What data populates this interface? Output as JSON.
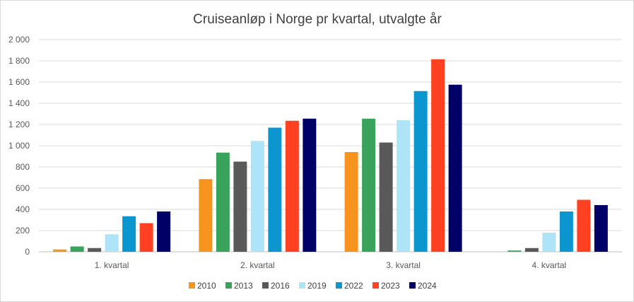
{
  "chart_data": {
    "type": "bar",
    "title": "Cruiseanløp i Norge pr kvartal, utvalgte år",
    "xlabel": "",
    "ylabel": "",
    "ylim": [
      0,
      2000
    ],
    "yticks": [
      0,
      200,
      400,
      600,
      800,
      1000,
      1200,
      1400,
      1600,
      1800,
      2000
    ],
    "ytick_labels": [
      "0",
      "200",
      "400",
      "600",
      "800",
      "1 000",
      "1 200",
      "1 400",
      "1 600",
      "1 800",
      "2 000"
    ],
    "grid": true,
    "legend_position": "bottom",
    "categories": [
      "1. kvartal",
      "2. kvartal",
      "3. kvartal",
      "4. kvartal"
    ],
    "series": [
      {
        "name": "2010",
        "color": "#f7941d",
        "values": [
          22,
          685,
          940,
          0
        ]
      },
      {
        "name": "2013",
        "color": "#3aa35b",
        "values": [
          50,
          935,
          1255,
          12
        ]
      },
      {
        "name": "2016",
        "color": "#595959",
        "values": [
          35,
          850,
          1030,
          35
        ]
      },
      {
        "name": "2019",
        "color": "#ade4f7",
        "values": [
          165,
          1045,
          1240,
          180
        ]
      },
      {
        "name": "2022",
        "color": "#0b96cf",
        "values": [
          335,
          1170,
          1515,
          380
        ]
      },
      {
        "name": "2023",
        "color": "#ff4121",
        "values": [
          270,
          1235,
          1815,
          490
        ]
      },
      {
        "name": "2024",
        "color": "#000066",
        "values": [
          380,
          1255,
          1575,
          440
        ]
      }
    ]
  }
}
